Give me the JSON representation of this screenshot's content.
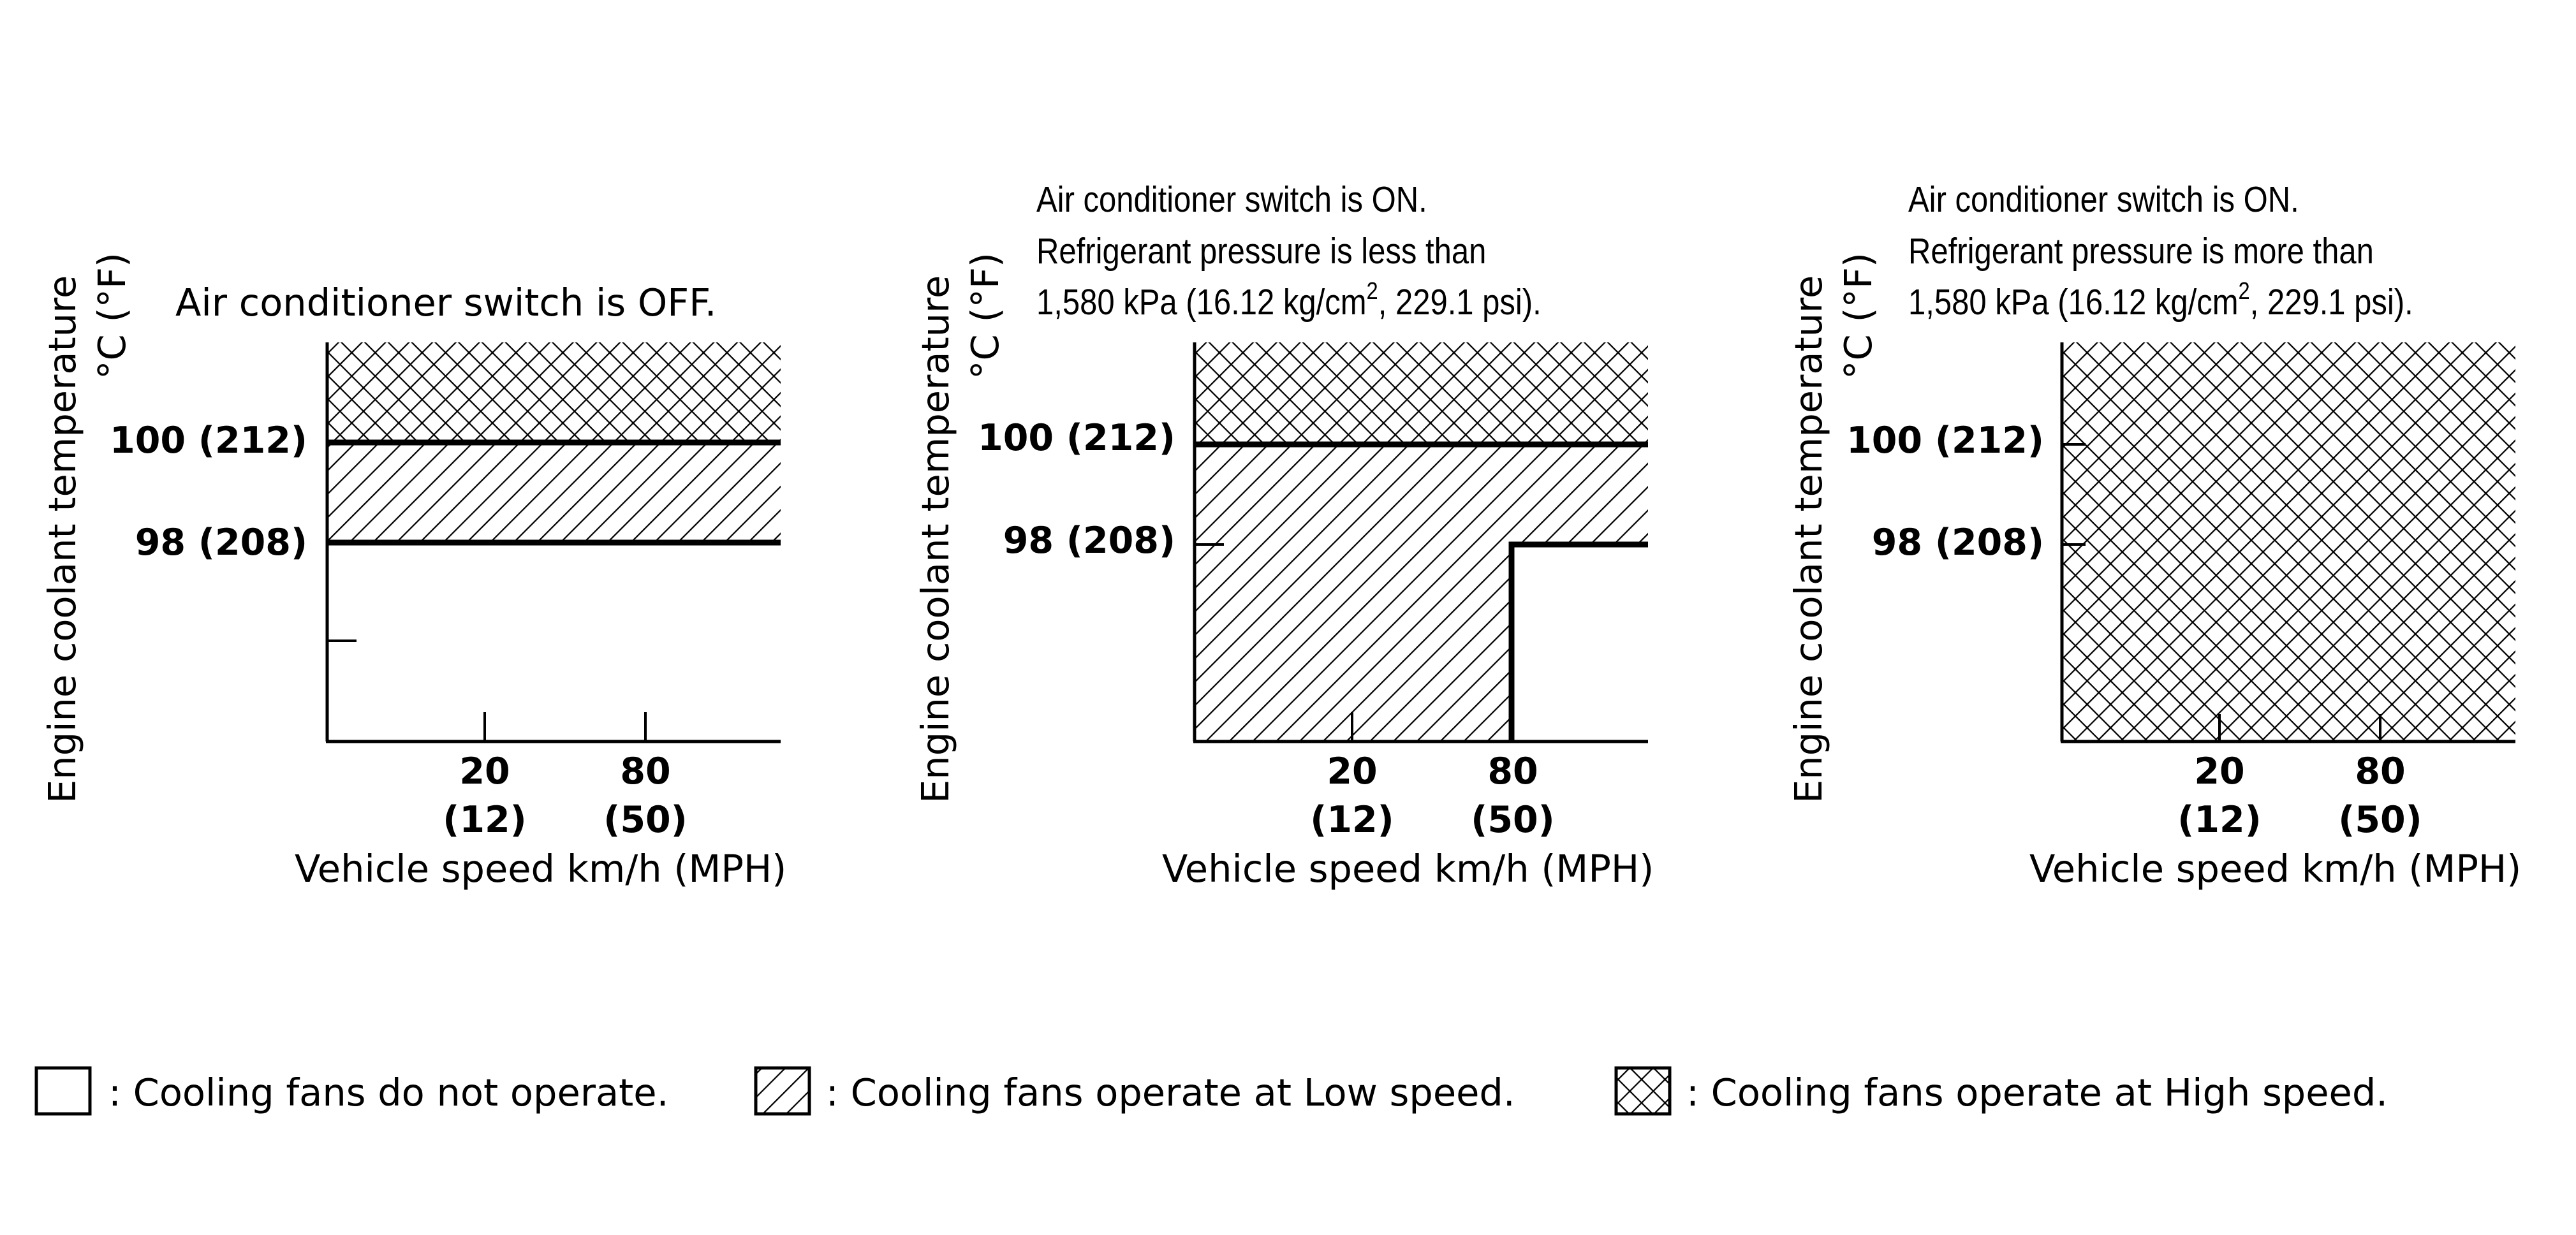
{
  "panels": [
    {
      "title_lines": [
        "Air conditioner switch is OFF."
      ],
      "ylabel_line1": "Engine coolant temperature",
      "ylabel_line2": "°C (°F)",
      "y_ticks": [
        "100 (212)",
        "98 (208)"
      ],
      "x_ticks": [
        {
          "top": "20",
          "bottom": "(12)"
        },
        {
          "top": "80",
          "bottom": "(50)"
        }
      ],
      "xlabel": "Vehicle speed km/h (MPH)",
      "zones": [
        {
          "temp": "above 100 °C",
          "speed": "all",
          "fan": "High"
        },
        {
          "temp": "98–100 °C",
          "speed": "all",
          "fan": "Low"
        },
        {
          "temp": "below 98 °C",
          "speed": "all",
          "fan": "Off"
        }
      ]
    },
    {
      "title_lines": [
        "Air conditioner switch is ON.",
        "Refrigerant pressure is less than",
        {
          "pre": "1,580 kPa (16.12 kg/cm",
          "sup": "2",
          "post": ", 229.1 psi)."
        }
      ],
      "ylabel_line1": "Engine coolant temperature",
      "ylabel_line2": "°C (°F)",
      "y_ticks": [
        "100 (212)",
        "98 (208)"
      ],
      "x_ticks": [
        {
          "top": "20",
          "bottom": "(12)"
        },
        {
          "top": "80",
          "bottom": "(50)"
        }
      ],
      "xlabel": "Vehicle speed km/h (MPH)",
      "zones": [
        {
          "temp": "above 100 °C",
          "speed": "all",
          "fan": "High"
        },
        {
          "temp": "98–100 °C",
          "speed": "all",
          "fan": "Low"
        },
        {
          "temp": "below 98 °C",
          "speed": "below 80 km/h",
          "fan": "Low"
        },
        {
          "temp": "below 98 °C",
          "speed": "above 80 km/h",
          "fan": "Off"
        }
      ]
    },
    {
      "title_lines": [
        "Air conditioner switch is ON.",
        "Refrigerant pressure is more than",
        {
          "pre": "1,580 kPa (16.12 kg/cm",
          "sup": "2",
          "post": ", 229.1 psi)."
        }
      ],
      "ylabel_line1": "Engine coolant temperature",
      "ylabel_line2": "°C (°F)",
      "y_ticks": [
        "100 (212)",
        "98 (208)"
      ],
      "x_ticks": [
        {
          "top": "20",
          "bottom": "(12)"
        },
        {
          "top": "80",
          "bottom": "(50)"
        }
      ],
      "xlabel": "Vehicle speed km/h (MPH)",
      "zones": [
        {
          "temp": "all",
          "speed": "all",
          "fan": "High"
        }
      ]
    }
  ],
  "legend": [
    {
      "pattern": "none",
      "label": ": Cooling fans do not operate."
    },
    {
      "pattern": "hatch",
      "label": ": Cooling fans operate at Low speed."
    },
    {
      "pattern": "crosshatch",
      "label": ": Cooling fans operate at High speed."
    }
  ]
}
